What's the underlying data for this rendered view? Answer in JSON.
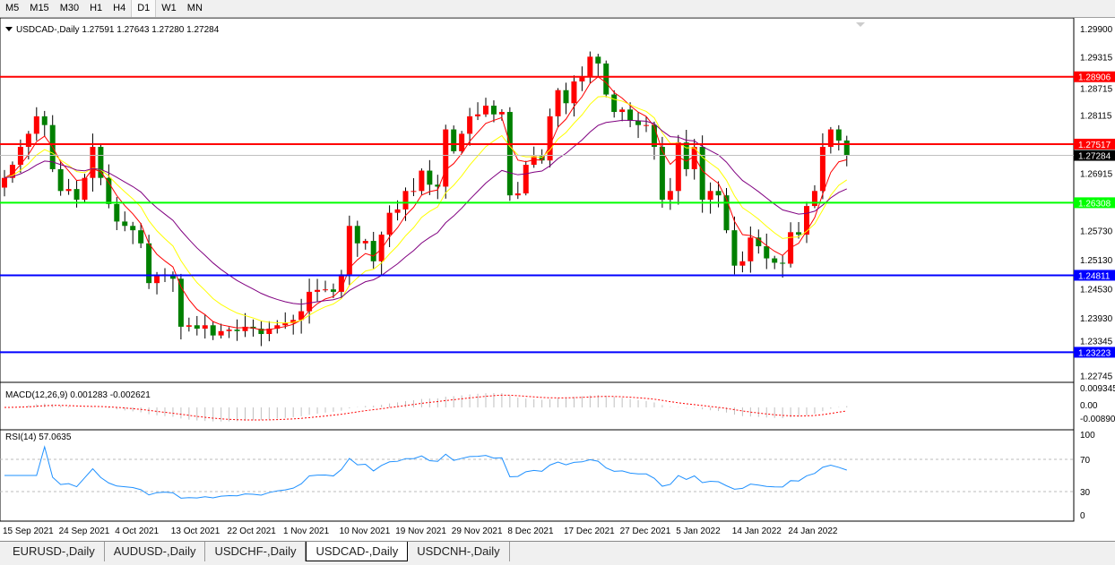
{
  "timeframes": [
    "M5",
    "M15",
    "M30",
    "H1",
    "H4",
    "D1",
    "W1",
    "MN"
  ],
  "active_timeframe": "D1",
  "header": {
    "symbol": "USDCAD-,Daily",
    "ohlc": "1.27591 1.27643 1.27280 1.27284"
  },
  "price_axis": {
    "ticks": [
      "1.29900",
      "1.29315",
      "1.28715",
      "1.28115",
      "1.26915",
      "1.25730",
      "1.25130",
      "1.24530",
      "1.23930",
      "1.23345",
      "1.22745"
    ],
    "ylim": [
      1.2264,
      1.3012
    ]
  },
  "levels": [
    {
      "price": 1.28906,
      "label": "1.28906",
      "color": "#ff0000"
    },
    {
      "price": 1.27517,
      "label": "1.27517",
      "color": "#ff0000"
    },
    {
      "price": 1.26308,
      "label": "1.26308",
      "color": "#00ff00"
    },
    {
      "price": 1.24811,
      "label": "1.24811",
      "color": "#0000ff"
    },
    {
      "price": 1.23223,
      "label": "1.23223",
      "color": "#0000ff"
    }
  ],
  "bid": {
    "price": 1.27284,
    "label": "1.27284"
  },
  "colors": {
    "bull": "#ff0000",
    "bear": "#008000",
    "ma_fast": "#ff0000",
    "ma_mid": "#ffff00",
    "ma_slow": "#800080",
    "macd": "#c0c0c0",
    "signal": "#ff0000",
    "rsi": "#1e90ff"
  },
  "chart_data": {
    "type": "candlestick",
    "closes": [
      1.2682,
      1.2709,
      1.2746,
      1.2773,
      1.2809,
      1.2791,
      1.27,
      1.2655,
      1.2659,
      1.2637,
      1.2682,
      1.2746,
      1.2682,
      1.2628,
      1.2592,
      1.2583,
      1.2574,
      1.2547,
      1.2465,
      1.248,
      1.2483,
      1.2474,
      1.2375,
      1.2378,
      1.2371,
      1.2378,
      1.2357,
      1.2366,
      1.2369,
      1.2366,
      1.2375,
      1.2371,
      1.236,
      1.2371,
      1.2378,
      1.2382,
      1.2389,
      1.2407,
      1.2447,
      1.2451,
      1.2452,
      1.2447,
      1.2483,
      1.2583,
      1.2547,
      1.2552,
      1.251,
      1.2565,
      1.261,
      1.2617,
      1.2655,
      1.2655,
      1.2697,
      1.2668,
      1.2664,
      1.2782,
      1.2737,
      1.2773,
      1.2809,
      1.2813,
      1.2831,
      1.2813,
      1.2818,
      1.2646,
      1.265,
      1.2709,
      1.2727,
      1.2718,
      1.2809,
      1.2863,
      1.2836,
      1.2881,
      1.289,
      1.2932,
      1.2918,
      1.2854,
      1.2818,
      1.2823,
      1.28,
      1.2791,
      1.2791,
      1.2746,
      1.2637,
      1.2655,
      1.2755,
      1.27,
      1.2746,
      1.2637,
      1.2655,
      1.2646,
      1.2574,
      1.2501,
      1.251,
      1.2559,
      1.2541,
      1.2516,
      1.2507,
      1.2505,
      1.257,
      1.2565,
      1.2624,
      1.2655,
      1.2746,
      1.2782,
      1.2759,
      1.27284
    ],
    "date_labels": [
      "15 Sep 2021",
      "24 Sep 2021",
      "4 Oct 2021",
      "13 Oct 2021",
      "22 Oct 2021",
      "1 Nov 2021",
      "10 Nov 2021",
      "19 Nov 2021",
      "29 Nov 2021",
      "8 Dec 2021",
      "17 Dec 2021",
      "27 Dec 2021",
      "5 Jan 2022",
      "14 Jan 2022",
      "24 Jan 2022"
    ]
  },
  "macd": {
    "label": "MACD(12,26,9) 0.001283 -0.002621",
    "ticks": [
      "0.009345",
      "0.00",
      "-0.008902"
    ]
  },
  "rsi": {
    "label": "RSI(14) 57.0635",
    "ticks": [
      "100",
      "70",
      "30",
      "0"
    ]
  },
  "tabs": [
    "EURUSD-,Daily",
    "AUDUSD-,Daily",
    "USDCHF-,Daily",
    "USDCAD-,Daily",
    "USDCNH-,Daily"
  ],
  "active_tab": "USDCAD-,Daily"
}
